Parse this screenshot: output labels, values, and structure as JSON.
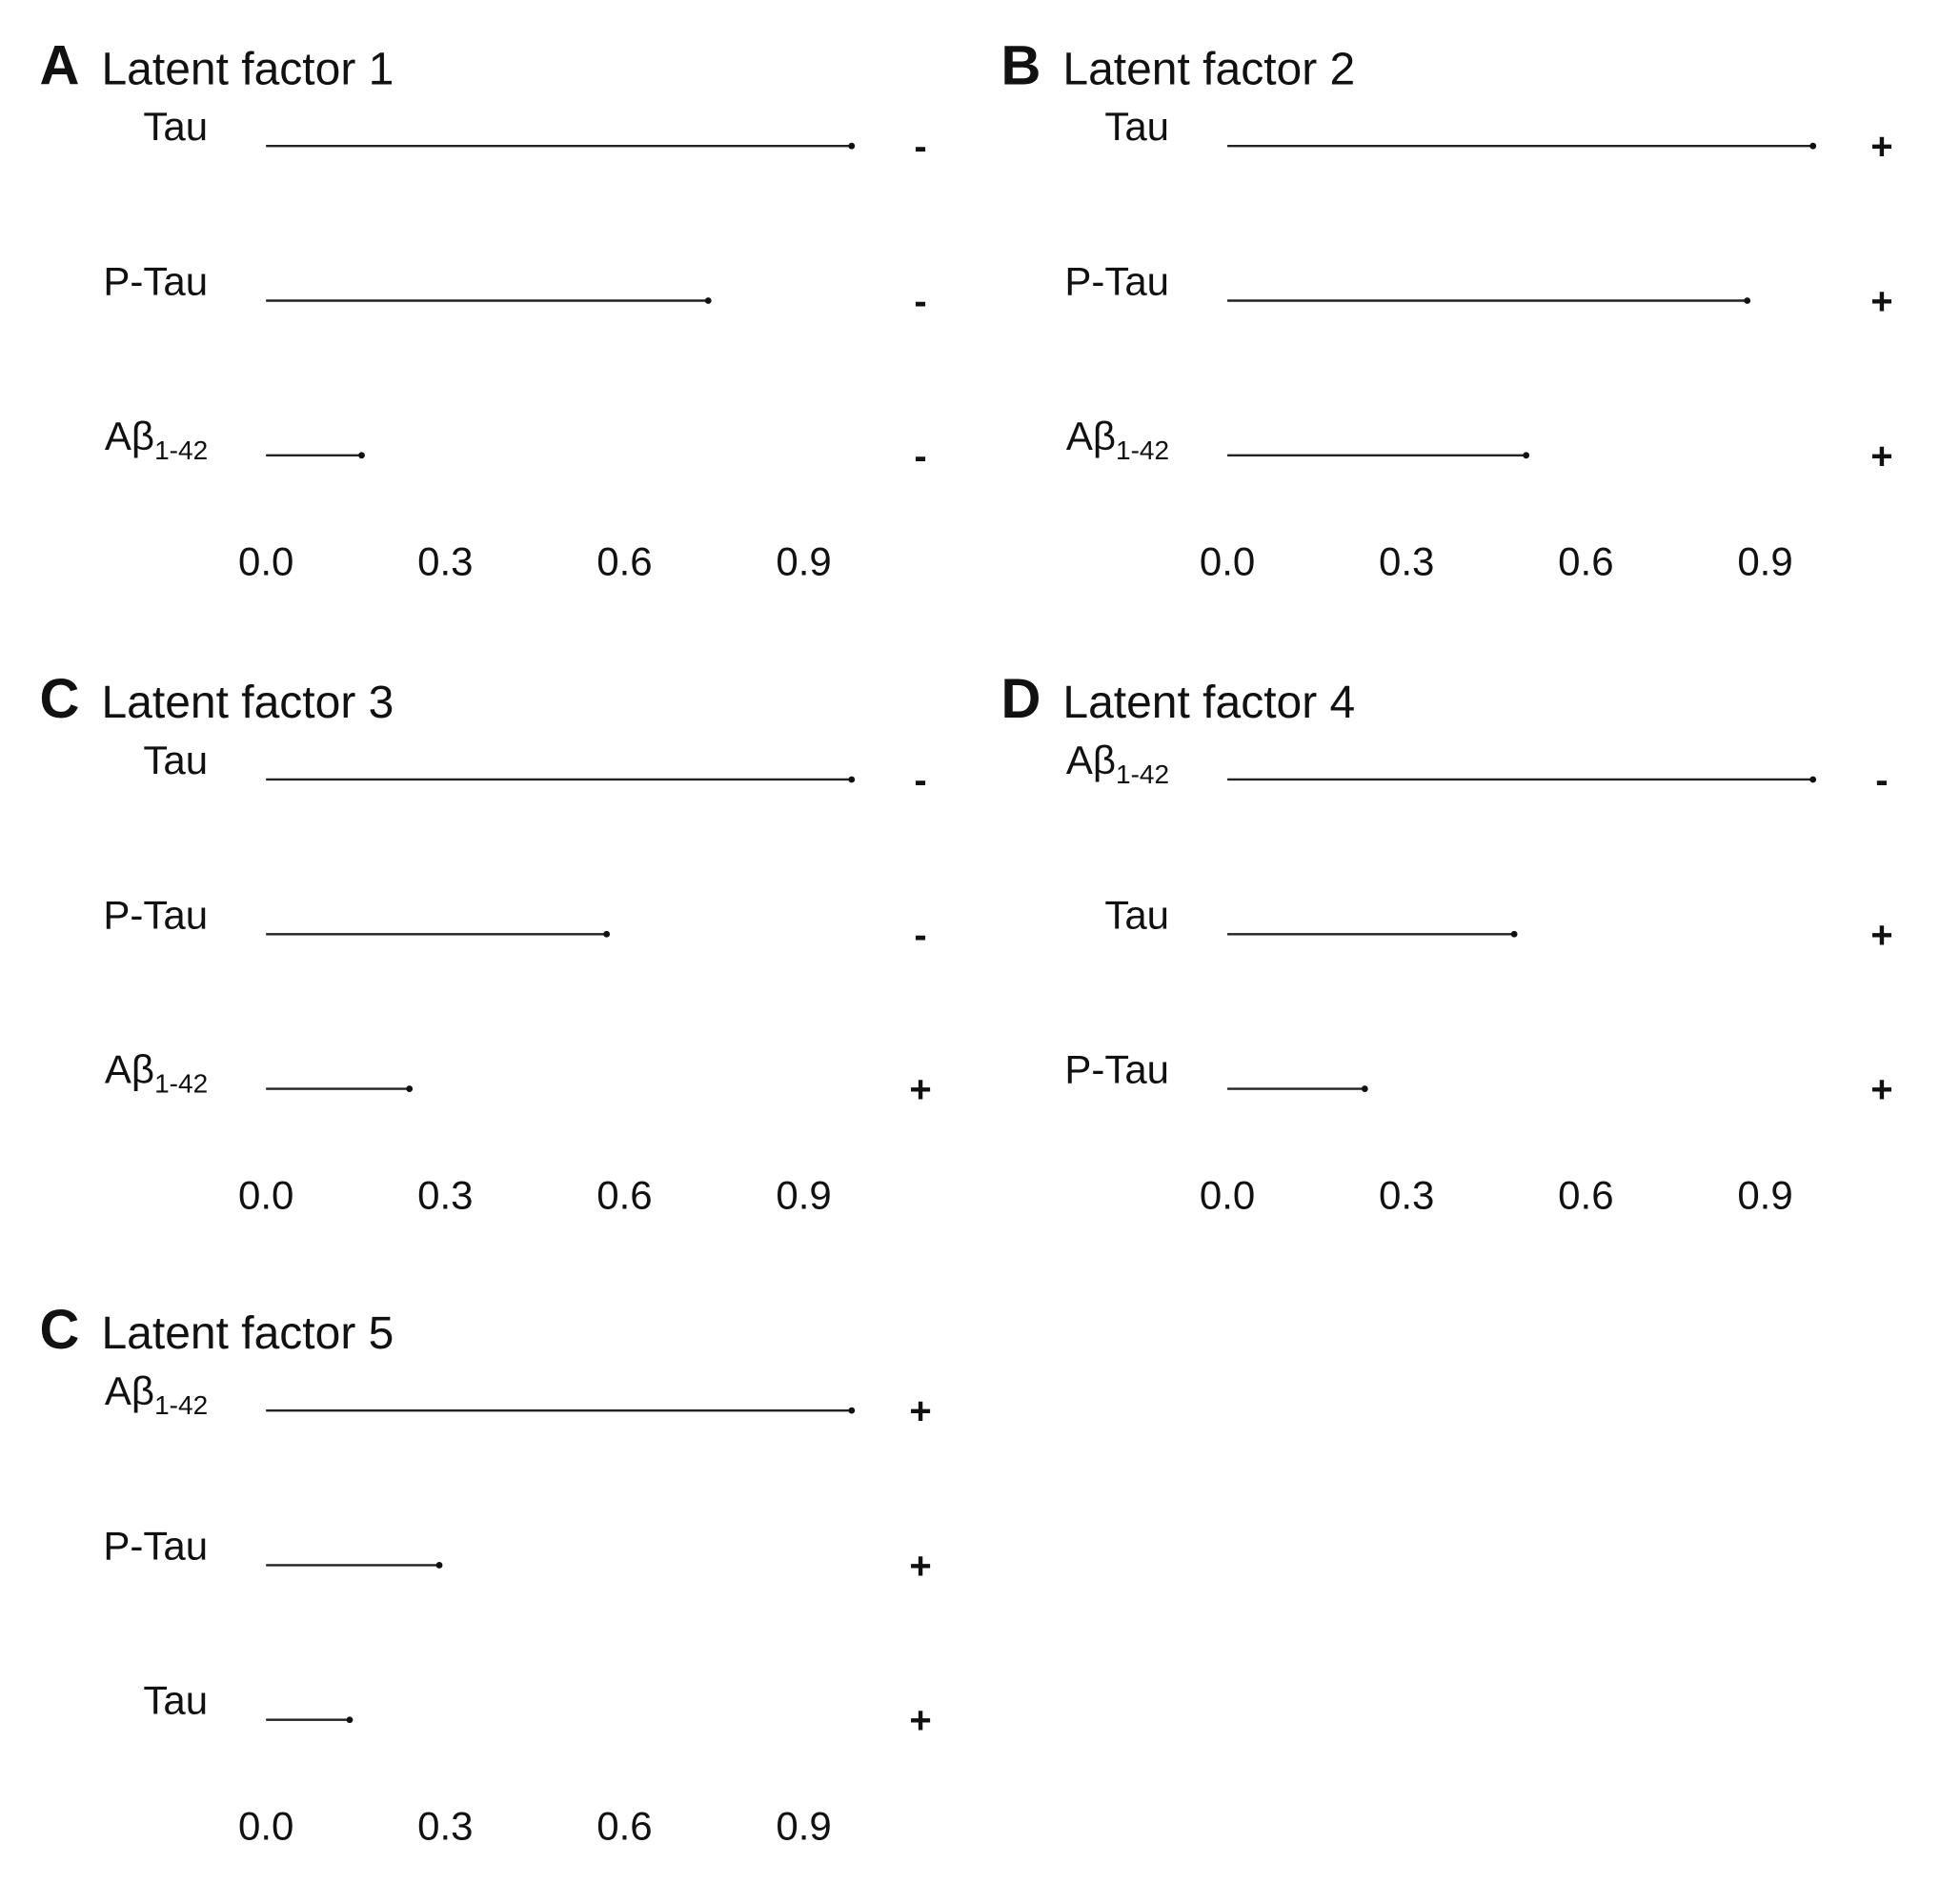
{
  "chart_data": [
    {
      "type": "bar",
      "panel_letter": "A",
      "title": "Latent factor 1",
      "orientation": "horizontal",
      "xlim": [
        0,
        1.0
      ],
      "xticks": [
        "0.0",
        "0.3",
        "0.6",
        "0.9"
      ],
      "bars": [
        {
          "label": "Tau",
          "label_sub": "",
          "value": 0.98,
          "sign": "-"
        },
        {
          "label": "P-Tau",
          "label_sub": "",
          "value": 0.74,
          "sign": "-"
        },
        {
          "label": "Aβ",
          "label_sub": "1-42",
          "value": 0.16,
          "sign": "-"
        }
      ]
    },
    {
      "type": "bar",
      "panel_letter": "B",
      "title": "Latent factor 2",
      "orientation": "horizontal",
      "xlim": [
        0,
        1.0
      ],
      "xticks": [
        "0.0",
        "0.3",
        "0.6",
        "0.9"
      ],
      "bars": [
        {
          "label": "Tau",
          "label_sub": "",
          "value": 0.98,
          "sign": "+"
        },
        {
          "label": "P-Tau",
          "label_sub": "",
          "value": 0.87,
          "sign": "+"
        },
        {
          "label": "Aβ",
          "label_sub": "1-42",
          "value": 0.5,
          "sign": "+"
        }
      ]
    },
    {
      "type": "bar",
      "panel_letter": "C",
      "title": "Latent factor 3",
      "orientation": "horizontal",
      "xlim": [
        0,
        1.0
      ],
      "xticks": [
        "0.0",
        "0.3",
        "0.6",
        "0.9"
      ],
      "bars": [
        {
          "label": "Tau",
          "label_sub": "",
          "value": 0.98,
          "sign": "-"
        },
        {
          "label": "P-Tau",
          "label_sub": "",
          "value": 0.57,
          "sign": "-"
        },
        {
          "label": "Aβ",
          "label_sub": "1-42",
          "value": 0.24,
          "sign": "+"
        }
      ]
    },
    {
      "type": "bar",
      "panel_letter": "D",
      "title": "Latent factor 4",
      "orientation": "horizontal",
      "xlim": [
        0,
        1.0
      ],
      "xticks": [
        "0.0",
        "0.3",
        "0.6",
        "0.9"
      ],
      "bars": [
        {
          "label": "Aβ",
          "label_sub": "1-42",
          "value": 0.98,
          "sign": "-"
        },
        {
          "label": "Tau",
          "label_sub": "",
          "value": 0.48,
          "sign": "+"
        },
        {
          "label": "P-Tau",
          "label_sub": "",
          "value": 0.23,
          "sign": "+"
        }
      ]
    },
    {
      "type": "bar",
      "panel_letter": "C",
      "title": "Latent factor 5",
      "orientation": "horizontal",
      "xlim": [
        0,
        1.0
      ],
      "xticks": [
        "0.0",
        "0.3",
        "0.6",
        "0.9"
      ],
      "bars": [
        {
          "label": "Aβ",
          "label_sub": "1-42",
          "value": 0.98,
          "sign": "+"
        },
        {
          "label": "P-Tau",
          "label_sub": "",
          "value": 0.29,
          "sign": "+"
        },
        {
          "label": "Tau",
          "label_sub": "",
          "value": 0.14,
          "sign": "+"
        }
      ]
    }
  ]
}
